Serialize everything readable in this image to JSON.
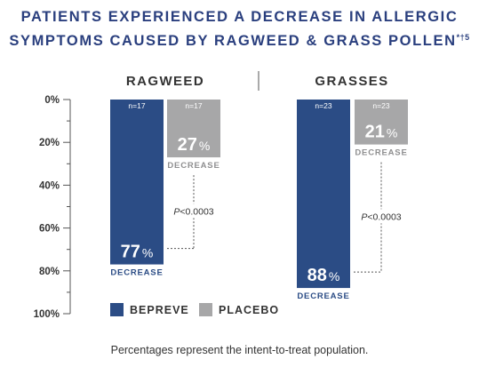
{
  "title": {
    "line1": "PATIENTS EXPERIENCED A DECREASE IN ALLERGIC",
    "line2": "SYMPTOMS CAUSED BY RAGWEED & GRASS POLLEN",
    "marks": "*†5"
  },
  "footnote": "Percentages represent the intent-to-treat population.",
  "colors": {
    "bepreve": "#2b4c85",
    "placebo": "#a7a7a8",
    "title": "#2a3f7e",
    "text": "#333333"
  },
  "chart_data": {
    "type": "bar",
    "orientation": "vertical-downward",
    "title": "PATIENTS EXPERIENCED A DECREASE IN ALLERGIC SYMPTOMS CAUSED BY RAGWEED & GRASS POLLEN",
    "categories": [
      "RAGWEED",
      "GRASSES"
    ],
    "ylim": [
      0,
      100
    ],
    "yticks": [
      "0%",
      "20%",
      "40%",
      "60%",
      "80%",
      "100%"
    ],
    "legend_position": "bottom",
    "series": [
      {
        "name": "BEPREVE",
        "values": [
          77,
          88
        ],
        "n_labels": [
          "n=17",
          "n=23"
        ]
      },
      {
        "name": "PLACEBO",
        "values": [
          27,
          21
        ],
        "n_labels": [
          "n=17",
          "n=23"
        ]
      }
    ],
    "value_suffix": "%",
    "bar_sublabel": "DECREASE",
    "comparisons": [
      "P<0.0003",
      "P<0.0003"
    ]
  }
}
